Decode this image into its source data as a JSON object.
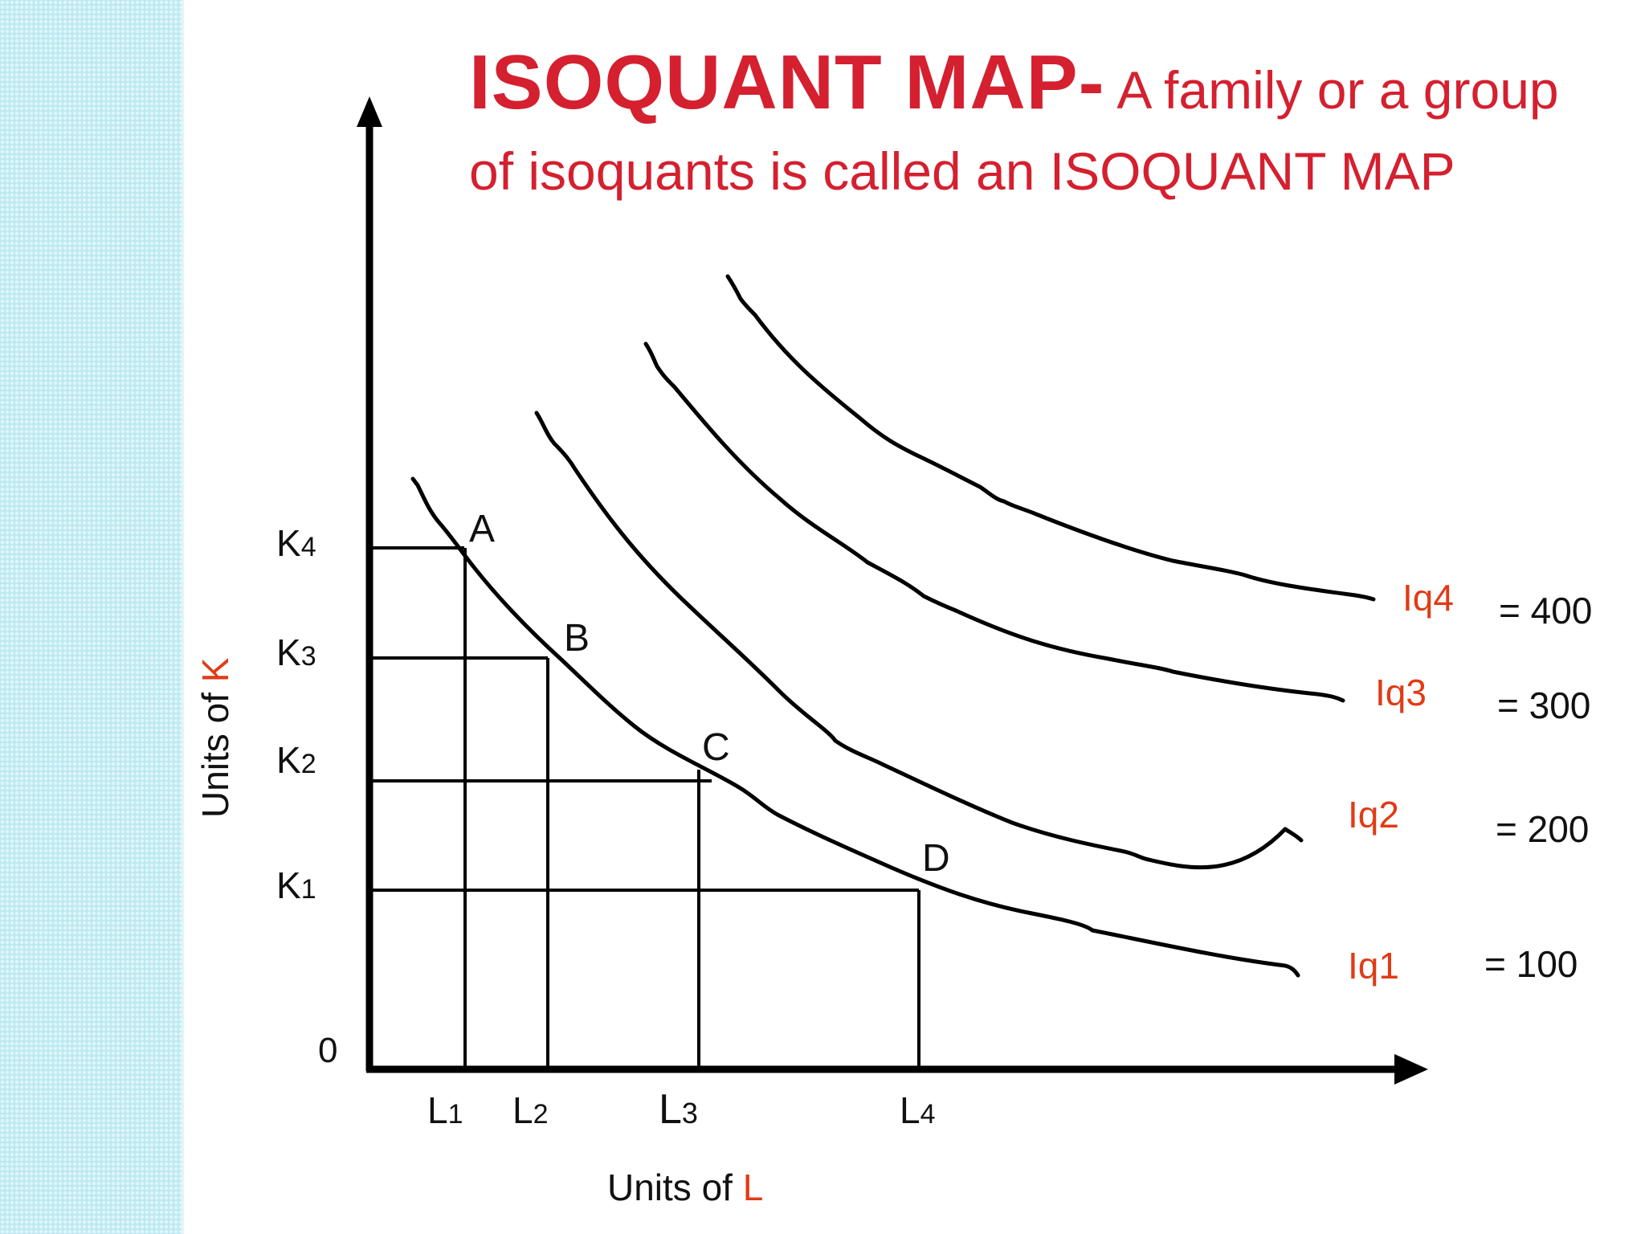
{
  "title": {
    "bold": "ISOQUANT  MAP-",
    "rest": " A family or a group of isoquants is called an ISOQUANT MAP"
  },
  "axes": {
    "y_label_prefix": "Units of ",
    "y_label_var": "K",
    "x_label_prefix": "Units of ",
    "x_label_var": "L",
    "origin": "0"
  },
  "k_levels": [
    {
      "base": "K",
      "sub": "4"
    },
    {
      "base": "K",
      "sub": "3"
    },
    {
      "base": "K",
      "sub": "2"
    },
    {
      "base": "K",
      "sub": "1"
    }
  ],
  "l_levels": [
    {
      "base": "L",
      "sub": "1"
    },
    {
      "base": "L",
      "sub": "2"
    },
    {
      "base": "L",
      "sub": "3"
    },
    {
      "base": "L",
      "sub": "4"
    }
  ],
  "points": [
    "A",
    "B",
    "C",
    "D"
  ],
  "isoquants": [
    {
      "name": "Iq1",
      "value": "= 100"
    },
    {
      "name": "Iq2",
      "value": "= 200"
    },
    {
      "name": "Iq3",
      "value": "= 300"
    },
    {
      "name": "Iq4",
      "value": "= 400"
    }
  ],
  "colors": {
    "title": "#d4202f",
    "variable": "#e03b16",
    "ink": "#000000",
    "strip": "#bde9f1"
  }
}
